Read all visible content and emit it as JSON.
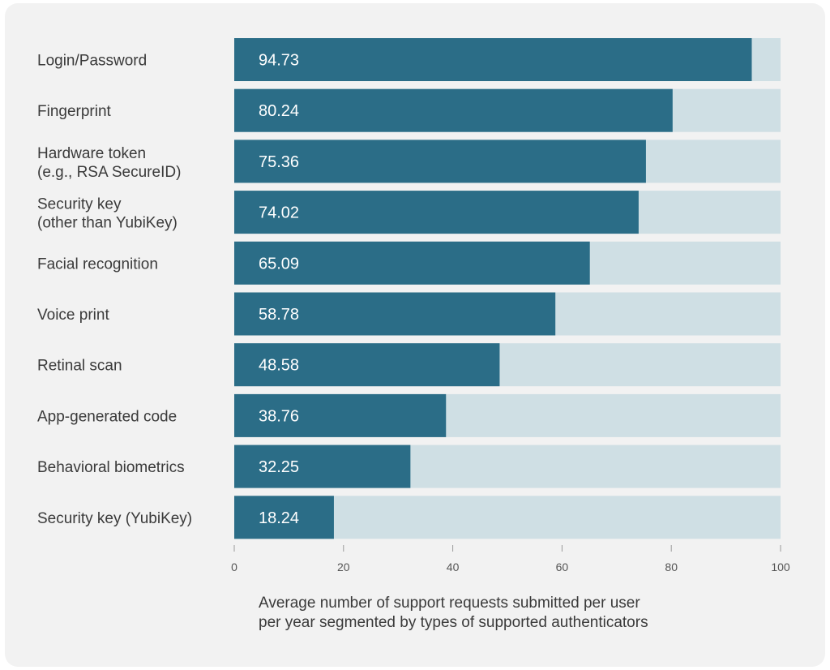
{
  "chart_data": {
    "type": "bar",
    "orientation": "horizontal",
    "categories": [
      [
        "Login/Password"
      ],
      [
        "Fingerprint"
      ],
      [
        "Hardware token",
        "(e.g., RSA SecureID)"
      ],
      [
        "Security key",
        "(other than YubiKey)"
      ],
      [
        "Facial recognition"
      ],
      [
        "Voice print"
      ],
      [
        "Retinal scan"
      ],
      [
        "App-generated code"
      ],
      [
        "Behavioral biometrics"
      ],
      [
        "Security key (YubiKey)"
      ]
    ],
    "values": [
      94.73,
      80.24,
      75.36,
      74.02,
      65.09,
      58.78,
      48.58,
      38.76,
      32.25,
      18.24
    ],
    "value_labels": [
      "94.73",
      "80.24",
      "75.36",
      "74.02",
      "65.09",
      "58.78",
      "48.58",
      "38.76",
      "32.25",
      "18.24"
    ],
    "xlim": [
      0,
      100
    ],
    "xticks": [
      "0",
      "20",
      "40",
      "60",
      "80",
      "100"
    ],
    "xlabel": [
      "Average number of support requests submitted per user",
      "per year segmented by types of supported authenticators"
    ],
    "colors": {
      "bar": "#2b6d87",
      "track": "#cfdfe4",
      "card": "#f2f2f2"
    },
    "grid": false,
    "legend": "none"
  }
}
